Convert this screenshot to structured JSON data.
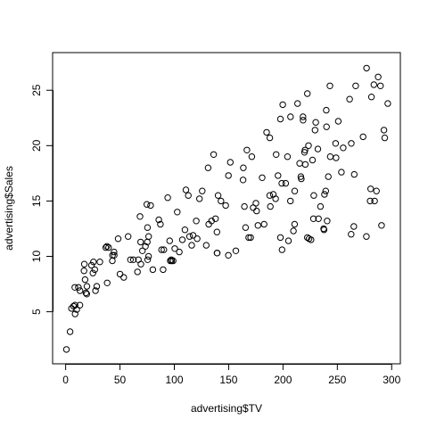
{
  "chart_data": {
    "type": "scatter",
    "title": "",
    "xlabel": "advertising$TV",
    "ylabel": "advertising$Sales",
    "xlim": [
      -12,
      308
    ],
    "ylim": [
      0.3,
      28.4
    ],
    "xticks": [
      0,
      50,
      100,
      150,
      200,
      250,
      300
    ],
    "yticks": [
      5,
      10,
      15,
      20,
      25
    ],
    "grid": false,
    "points": [
      [
        0.7,
        1.6
      ],
      [
        4.1,
        3.2
      ],
      [
        5.4,
        5.3
      ],
      [
        7.3,
        5.5
      ],
      [
        8.6,
        5.6
      ],
      [
        8.4,
        7.2
      ],
      [
        8.7,
        4.8
      ],
      [
        10.2,
        5.2
      ],
      [
        11.7,
        7.2
      ],
      [
        13.1,
        5.6
      ],
      [
        13.2,
        6.9
      ],
      [
        16.9,
        8.7
      ],
      [
        17.2,
        9.3
      ],
      [
        17.9,
        7.9
      ],
      [
        18.7,
        6.7
      ],
      [
        19.4,
        6.6
      ],
      [
        19.6,
        7.3
      ],
      [
        23.8,
        9.2
      ],
      [
        25.1,
        8.5
      ],
      [
        25.6,
        9.5
      ],
      [
        26.8,
        8.8
      ],
      [
        27.5,
        6.9
      ],
      [
        28.6,
        7.3
      ],
      [
        31.5,
        9.5
      ],
      [
        36.9,
        10.8
      ],
      [
        38.0,
        10.9
      ],
      [
        38.2,
        7.6
      ],
      [
        39.5,
        10.8
      ],
      [
        43.0,
        9.6
      ],
      [
        43.1,
        10.1
      ],
      [
        44.5,
        10.4
      ],
      [
        44.7,
        10.1
      ],
      [
        48.3,
        11.6
      ],
      [
        50.0,
        8.4
      ],
      [
        53.5,
        8.1
      ],
      [
        57.5,
        11.8
      ],
      [
        59.6,
        9.7
      ],
      [
        62.3,
        9.7
      ],
      [
        66.1,
        8.6
      ],
      [
        66.9,
        9.7
      ],
      [
        68.4,
        13.6
      ],
      [
        69.0,
        11.3
      ],
      [
        69.2,
        9.3
      ],
      [
        70.6,
        10.5
      ],
      [
        73.4,
        10.9
      ],
      [
        74.7,
        14.7
      ],
      [
        75.1,
        11.3
      ],
      [
        75.3,
        12.6
      ],
      [
        75.5,
        9.7
      ],
      [
        76.3,
        10.0
      ],
      [
        76.4,
        11.8
      ],
      [
        78.2,
        14.6
      ],
      [
        80.2,
        8.8
      ],
      [
        85.7,
        13.3
      ],
      [
        87.2,
        12.9
      ],
      [
        88.3,
        10.6
      ],
      [
        89.7,
        8.8
      ],
      [
        90.4,
        10.6
      ],
      [
        93.9,
        15.3
      ],
      [
        95.7,
        11.4
      ],
      [
        96.2,
        9.6
      ],
      [
        97.2,
        9.7
      ],
      [
        97.5,
        9.6
      ],
      [
        98.9,
        9.6
      ],
      [
        100.4,
        10.7
      ],
      [
        102.7,
        14.0
      ],
      [
        104.6,
        10.4
      ],
      [
        107.4,
        11.5
      ],
      [
        109.8,
        12.4
      ],
      [
        110.7,
        16.0
      ],
      [
        112.9,
        15.5
      ],
      [
        114.0,
        11.8
      ],
      [
        116.0,
        11.0
      ],
      [
        117.2,
        11.9
      ],
      [
        120.2,
        13.2
      ],
      [
        121.0,
        11.6
      ],
      [
        123.1,
        15.2
      ],
      [
        125.7,
        15.9
      ],
      [
        129.4,
        11.0
      ],
      [
        131.1,
        18.0
      ],
      [
        131.7,
        12.9
      ],
      [
        134.3,
        13.2
      ],
      [
        136.2,
        19.2
      ],
      [
        137.9,
        13.4
      ],
      [
        139.2,
        12.2
      ],
      [
        139.3,
        10.3
      ],
      [
        139.5,
        10.3
      ],
      [
        140.3,
        15.5
      ],
      [
        142.9,
        15.0
      ],
      [
        147.3,
        14.6
      ],
      [
        149.7,
        10.1
      ],
      [
        149.8,
        17.3
      ],
      [
        151.5,
        18.5
      ],
      [
        156.6,
        10.5
      ],
      [
        163.3,
        16.9
      ],
      [
        163.5,
        18.0
      ],
      [
        164.5,
        14.5
      ],
      [
        165.6,
        12.6
      ],
      [
        166.8,
        19.6
      ],
      [
        168.4,
        11.7
      ],
      [
        170.2,
        11.7
      ],
      [
        171.3,
        19.0
      ],
      [
        172.5,
        14.4
      ],
      [
        175.1,
        14.8
      ],
      [
        175.7,
        14.1
      ],
      [
        177.0,
        12.8
      ],
      [
        180.8,
        17.1
      ],
      [
        182.6,
        12.9
      ],
      [
        184.9,
        21.2
      ],
      [
        187.8,
        15.5
      ],
      [
        187.9,
        20.7
      ],
      [
        188.4,
        14.5
      ],
      [
        191.1,
        15.6
      ],
      [
        193.2,
        15.2
      ],
      [
        193.7,
        19.2
      ],
      [
        195.4,
        17.3
      ],
      [
        197.6,
        22.4
      ],
      [
        197.6,
        11.7
      ],
      [
        198.9,
        16.6
      ],
      [
        199.1,
        10.6
      ],
      [
        199.8,
        23.7
      ],
      [
        202.5,
        16.6
      ],
      [
        204.1,
        19.0
      ],
      [
        205.0,
        11.4
      ],
      [
        206.9,
        22.6
      ],
      [
        206.8,
        15.0
      ],
      [
        209.6,
        12.3
      ],
      [
        210.7,
        12.9
      ],
      [
        210.8,
        15.9
      ],
      [
        213.4,
        23.8
      ],
      [
        215.4,
        18.4
      ],
      [
        216.4,
        17.2
      ],
      [
        216.8,
        17.0
      ],
      [
        218.4,
        22.6
      ],
      [
        218.5,
        22.3
      ],
      [
        219.8,
        19.4
      ],
      [
        220.3,
        19.6
      ],
      [
        220.5,
        18.3
      ],
      [
        222.4,
        24.7
      ],
      [
        222.4,
        11.7
      ],
      [
        223.5,
        20.0
      ],
      [
        224.0,
        11.6
      ],
      [
        225.8,
        11.5
      ],
      [
        227.2,
        18.7
      ],
      [
        228.3,
        15.5
      ],
      [
        228.0,
        13.4
      ],
      [
        229.5,
        21.4
      ],
      [
        230.1,
        22.1
      ],
      [
        232.1,
        19.7
      ],
      [
        232.7,
        13.4
      ],
      [
        234.5,
        14.5
      ],
      [
        237.4,
        12.5
      ],
      [
        237.8,
        12.4
      ],
      [
        238.2,
        15.6
      ],
      [
        239.3,
        15.9
      ],
      [
        239.8,
        23.2
      ],
      [
        240.1,
        21.7
      ],
      [
        240.6,
        13.2
      ],
      [
        241.7,
        17.2
      ],
      [
        243.2,
        25.4
      ],
      [
        243.5,
        19.0
      ],
      [
        248.4,
        20.2
      ],
      [
        248.8,
        18.9
      ],
      [
        250.9,
        22.2
      ],
      [
        253.8,
        17.6
      ],
      [
        255.4,
        19.8
      ],
      [
        261.3,
        24.2
      ],
      [
        262.7,
        12.0
      ],
      [
        262.9,
        20.2
      ],
      [
        265.2,
        12.7
      ],
      [
        265.6,
        17.4
      ],
      [
        266.9,
        25.4
      ],
      [
        273.7,
        20.8
      ],
      [
        276.7,
        11.8
      ],
      [
        276.9,
        27.0
      ],
      [
        280.2,
        15.0
      ],
      [
        280.7,
        16.1
      ],
      [
        281.4,
        24.4
      ],
      [
        283.6,
        25.5
      ],
      [
        284.3,
        15.0
      ],
      [
        286.0,
        15.9
      ],
      [
        287.6,
        26.2
      ],
      [
        289.7,
        25.4
      ],
      [
        290.7,
        12.8
      ],
      [
        292.9,
        21.4
      ],
      [
        293.6,
        20.7
      ],
      [
        296.4,
        23.8
      ]
    ]
  }
}
